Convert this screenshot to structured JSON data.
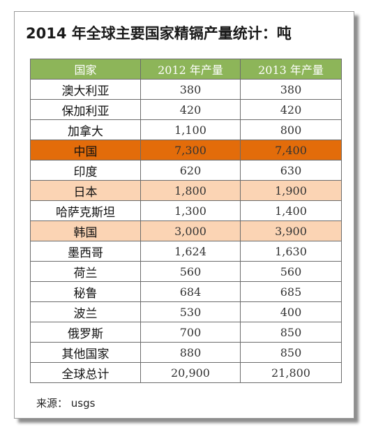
{
  "title": "2014 年全球主要国家精镉产量统计：吨",
  "table": {
    "headers": [
      "国家",
      "2012 年产量",
      "2013 年产量"
    ],
    "highlight_colors": {
      "strong": "#e36c0a",
      "light": "#fbd4b4",
      "header": "#8db559"
    },
    "rows": [
      {
        "country": "澳大利亚",
        "y2012": "380",
        "y2013": "380",
        "highlight": ""
      },
      {
        "country": "保加利亚",
        "y2012": "420",
        "y2013": "420",
        "highlight": ""
      },
      {
        "country": "加拿大",
        "y2012": "1,100",
        "y2013": "800",
        "highlight": ""
      },
      {
        "country": "中国",
        "y2012": "7,300",
        "y2013": "7,400",
        "highlight": "strong"
      },
      {
        "country": "印度",
        "y2012": "620",
        "y2013": "630",
        "highlight": ""
      },
      {
        "country": "日本",
        "y2012": "1,800",
        "y2013": "1,900",
        "highlight": "light"
      },
      {
        "country": "哈萨克斯坦",
        "y2012": "1,300",
        "y2013": "1,400",
        "highlight": ""
      },
      {
        "country": "韩国",
        "y2012": "3,000",
        "y2013": "3,900",
        "highlight": "light"
      },
      {
        "country": "墨西哥",
        "y2012": "1,624",
        "y2013": "1,630",
        "highlight": ""
      },
      {
        "country": "荷兰",
        "y2012": "560",
        "y2013": "560",
        "highlight": ""
      },
      {
        "country": "秘鲁",
        "y2012": "684",
        "y2013": "685",
        "highlight": ""
      },
      {
        "country": "波兰",
        "y2012": "530",
        "y2013": "400",
        "highlight": ""
      },
      {
        "country": "俄罗斯",
        "y2012": "700",
        "y2013": "850",
        "highlight": ""
      },
      {
        "country": "其他国家",
        "y2012": "880",
        "y2013": "850",
        "highlight": ""
      },
      {
        "country": "全球总计",
        "y2012": "20,900",
        "y2013": "21,800",
        "highlight": ""
      }
    ]
  },
  "source": "来源：  usgs"
}
